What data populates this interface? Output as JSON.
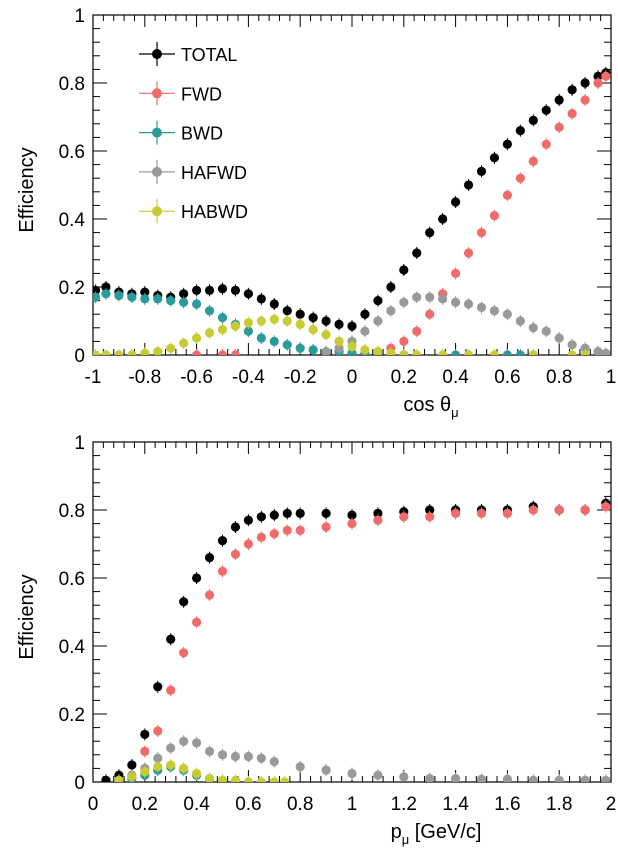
{
  "colors": {
    "TOTAL": "#000000",
    "FWD": "#f26b6b",
    "BWD": "#2a9a9a",
    "HAFWD": "#999999",
    "HABWD": "#c8cc33"
  },
  "chart_data": [
    {
      "type": "scatter",
      "xlabel": "cos θ",
      "xlabel_sub": "μ",
      "ylabel": "Efficiency",
      "xlim": [
        -1,
        1
      ],
      "ylim": [
        0,
        1
      ],
      "xticks": [
        -1,
        -0.8,
        -0.6,
        -0.4,
        -0.2,
        0,
        0.2,
        0.4,
        0.6,
        0.8,
        1
      ],
      "xtick_labels": [
        "-1",
        "-0.8",
        "-0.6",
        "-0.4",
        "-0.2",
        "0",
        "0.2",
        "0.4",
        "0.6",
        "0.8",
        "1"
      ],
      "yticks": [
        0,
        0.2,
        0.4,
        0.6,
        0.8,
        1
      ],
      "ytick_labels": [
        "0",
        "0.2",
        "0.4",
        "0.6",
        "0.8",
        "1"
      ],
      "grid": false,
      "legend": "top-left",
      "series": [
        {
          "name": "TOTAL",
          "x": [
            -0.99,
            -0.95,
            -0.9,
            -0.85,
            -0.8,
            -0.75,
            -0.7,
            -0.65,
            -0.6,
            -0.55,
            -0.5,
            -0.45,
            -0.4,
            -0.35,
            -0.3,
            -0.25,
            -0.2,
            -0.15,
            -0.1,
            -0.05,
            0,
            0.05,
            0.1,
            0.15,
            0.2,
            0.25,
            0.3,
            0.35,
            0.4,
            0.45,
            0.5,
            0.55,
            0.6,
            0.65,
            0.7,
            0.75,
            0.8,
            0.85,
            0.9,
            0.95,
            0.98
          ],
          "y": [
            0.19,
            0.2,
            0.185,
            0.18,
            0.185,
            0.175,
            0.17,
            0.18,
            0.19,
            0.19,
            0.195,
            0.19,
            0.18,
            0.165,
            0.15,
            0.13,
            0.12,
            0.11,
            0.1,
            0.09,
            0.085,
            0.12,
            0.16,
            0.2,
            0.25,
            0.3,
            0.36,
            0.4,
            0.45,
            0.5,
            0.54,
            0.58,
            0.62,
            0.66,
            0.69,
            0.72,
            0.75,
            0.78,
            0.8,
            0.82,
            0.83
          ]
        },
        {
          "name": "FWD",
          "x": [
            -0.6,
            -0.5,
            -0.45,
            0.1,
            0.15,
            0.2,
            0.25,
            0.3,
            0.35,
            0.4,
            0.45,
            0.5,
            0.55,
            0.6,
            0.65,
            0.7,
            0.75,
            0.8,
            0.85,
            0.9,
            0.95,
            0.98
          ],
          "y": [
            0,
            0,
            0,
            0.01,
            0.02,
            0.04,
            0.07,
            0.12,
            0.18,
            0.24,
            0.3,
            0.36,
            0.41,
            0.47,
            0.52,
            0.57,
            0.62,
            0.67,
            0.71,
            0.75,
            0.8,
            0.82
          ]
        },
        {
          "name": "BWD",
          "x": [
            -0.99,
            -0.95,
            -0.9,
            -0.85,
            -0.8,
            -0.75,
            -0.7,
            -0.65,
            -0.6,
            -0.55,
            -0.5,
            -0.45,
            -0.4,
            -0.35,
            -0.3,
            -0.25,
            -0.2,
            -0.15,
            -0.1,
            -0.05,
            0,
            0.05,
            0.1,
            0.15,
            0.2,
            0.4,
            0.6,
            0.65,
            0.7
          ],
          "y": [
            0.17,
            0.18,
            0.175,
            0.17,
            0.165,
            0.165,
            0.16,
            0.155,
            0.15,
            0.13,
            0.11,
            0.09,
            0.07,
            0.05,
            0.04,
            0.03,
            0.02,
            0.015,
            0.01,
            0.01,
            0.005,
            0.005,
            0,
            0,
            0,
            0,
            0,
            0,
            0
          ]
        },
        {
          "name": "HAFWD",
          "x": [
            -0.1,
            -0.05,
            0,
            0.05,
            0.1,
            0.15,
            0.2,
            0.25,
            0.3,
            0.35,
            0.4,
            0.45,
            0.5,
            0.55,
            0.6,
            0.65,
            0.7,
            0.75,
            0.8,
            0.85,
            0.9,
            0.95,
            0.98
          ],
          "y": [
            0.01,
            0.02,
            0.04,
            0.07,
            0.1,
            0.13,
            0.155,
            0.17,
            0.17,
            0.165,
            0.155,
            0.15,
            0.14,
            0.13,
            0.12,
            0.1,
            0.08,
            0.07,
            0.05,
            0.03,
            0.02,
            0.01,
            0.005
          ]
        },
        {
          "name": "HABWD",
          "x": [
            -0.99,
            -0.95,
            -0.9,
            -0.85,
            -0.8,
            -0.75,
            -0.7,
            -0.65,
            -0.6,
            -0.55,
            -0.5,
            -0.45,
            -0.4,
            -0.35,
            -0.3,
            -0.25,
            -0.2,
            -0.15,
            -0.1,
            -0.05,
            0,
            0.05,
            0.1,
            0.15,
            0.2,
            0.25,
            0.35,
            0.45,
            0.55,
            0.7,
            0.85,
            0.9
          ],
          "y": [
            0,
            0,
            0,
            0,
            0.005,
            0.01,
            0.02,
            0.035,
            0.05,
            0.065,
            0.075,
            0.085,
            0.095,
            0.1,
            0.105,
            0.1,
            0.09,
            0.075,
            0.06,
            0.04,
            0.025,
            0.015,
            0.01,
            0.005,
            0,
            0,
            0,
            0,
            0,
            0,
            0,
            0
          ]
        }
      ]
    },
    {
      "type": "scatter",
      "xlabel": "p",
      "xlabel_sub": "μ",
      "xlabel_unit": " [GeV/c]",
      "ylabel": "Efficiency",
      "xlim": [
        0,
        2
      ],
      "ylim": [
        0,
        1
      ],
      "xticks": [
        0,
        0.2,
        0.4,
        0.6,
        0.8,
        1,
        1.2,
        1.4,
        1.6,
        1.8,
        2
      ],
      "xtick_labels": [
        "0",
        "0.2",
        "0.4",
        "0.6",
        "0.8",
        "1",
        "1.2",
        "1.4",
        "1.6",
        "1.8",
        "2"
      ],
      "yticks": [
        0,
        0.2,
        0.4,
        0.6,
        0.8,
        1
      ],
      "ytick_labels": [
        "0",
        "0.2",
        "0.4",
        "0.6",
        "0.8",
        "1"
      ],
      "grid": false,
      "series": [
        {
          "name": "TOTAL",
          "x": [
            0.05,
            0.1,
            0.15,
            0.2,
            0.25,
            0.3,
            0.35,
            0.4,
            0.45,
            0.5,
            0.55,
            0.6,
            0.65,
            0.7,
            0.75,
            0.8,
            0.9,
            1.0,
            1.1,
            1.2,
            1.3,
            1.4,
            1.5,
            1.6,
            1.7,
            1.8,
            1.9,
            1.98
          ],
          "y": [
            0.005,
            0.02,
            0.05,
            0.14,
            0.28,
            0.42,
            0.53,
            0.6,
            0.66,
            0.71,
            0.75,
            0.77,
            0.78,
            0.785,
            0.79,
            0.79,
            0.79,
            0.785,
            0.79,
            0.795,
            0.8,
            0.8,
            0.8,
            0.8,
            0.81,
            0.8,
            0.8,
            0.82
          ]
        },
        {
          "name": "FWD",
          "x": [
            0.2,
            0.25,
            0.3,
            0.35,
            0.4,
            0.45,
            0.5,
            0.55,
            0.6,
            0.65,
            0.7,
            0.75,
            0.8,
            0.9,
            1.0,
            1.1,
            1.2,
            1.3,
            1.4,
            1.5,
            1.6,
            1.7,
            1.8,
            1.9,
            1.98
          ],
          "y": [
            0.09,
            0.15,
            0.27,
            0.38,
            0.47,
            0.55,
            0.62,
            0.67,
            0.7,
            0.72,
            0.73,
            0.74,
            0.74,
            0.75,
            0.76,
            0.77,
            0.78,
            0.78,
            0.79,
            0.79,
            0.79,
            0.8,
            0.8,
            0.8,
            0.81
          ]
        },
        {
          "name": "BWD",
          "x": [
            0.1,
            0.15,
            0.2,
            0.25,
            0.3,
            0.35,
            0.4,
            0.45,
            0.5
          ],
          "y": [
            0.005,
            0.01,
            0.02,
            0.035,
            0.045,
            0.035,
            0.02,
            0.01,
            0.005
          ]
        },
        {
          "name": "HAFWD",
          "x": [
            0.15,
            0.2,
            0.25,
            0.3,
            0.35,
            0.4,
            0.45,
            0.5,
            0.55,
            0.6,
            0.65,
            0.7,
            0.8,
            0.9,
            1.0,
            1.1,
            1.2,
            1.3,
            1.4,
            1.5,
            1.6,
            1.7,
            1.8,
            1.9,
            1.98
          ],
          "y": [
            0.02,
            0.04,
            0.07,
            0.1,
            0.12,
            0.115,
            0.09,
            0.08,
            0.075,
            0.075,
            0.07,
            0.06,
            0.045,
            0.035,
            0.025,
            0.02,
            0.015,
            0.01,
            0.01,
            0.008,
            0.008,
            0.005,
            0.005,
            0.005,
            0.005
          ]
        },
        {
          "name": "HABWD",
          "x": [
            0.1,
            0.15,
            0.2,
            0.25,
            0.3,
            0.35,
            0.4,
            0.45,
            0.5,
            0.55,
            0.6,
            0.65,
            0.7,
            0.74
          ],
          "y": [
            0.005,
            0.015,
            0.03,
            0.045,
            0.05,
            0.04,
            0.025,
            0.01,
            0.005,
            0.005,
            0,
            0,
            0,
            0
          ]
        }
      ]
    }
  ]
}
